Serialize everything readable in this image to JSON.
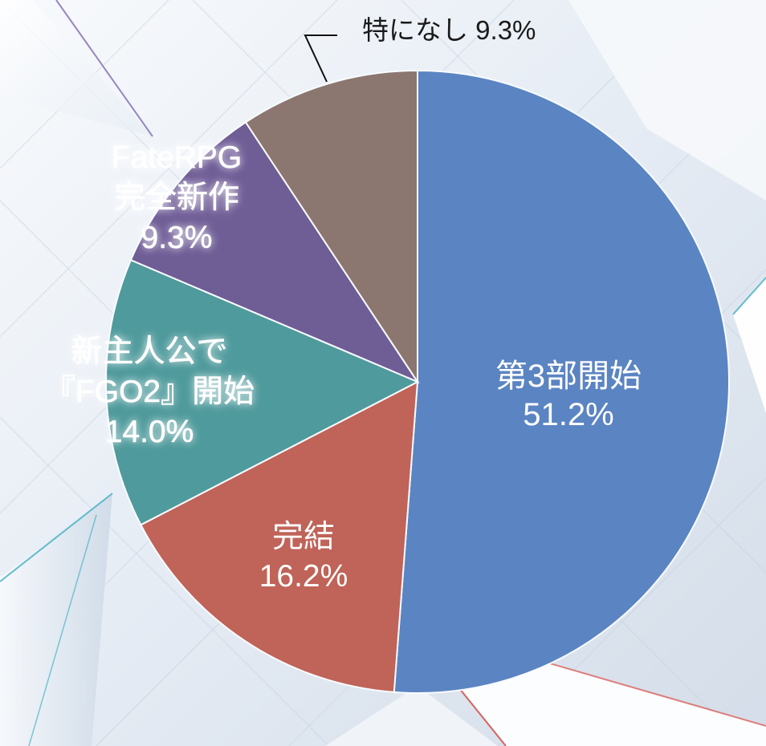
{
  "chart_data": {
    "type": "pie",
    "title": "",
    "slices": [
      {
        "label_lines": [
          "第3部開始"
        ],
        "value": 51.2,
        "value_label": "51.2%",
        "color": "#5b84c2",
        "label_color": "#ffffff"
      },
      {
        "label_lines": [
          "完結"
        ],
        "value": 16.2,
        "value_label": "16.2%",
        "color": "#c06358",
        "label_color": "#ffffff"
      },
      {
        "label_lines": [
          "新主人公で",
          "『FGO2』開始"
        ],
        "value": 14.0,
        "value_label": "14.0%",
        "color": "#4f9a9c",
        "label_color": "#ffffff"
      },
      {
        "label_lines": [
          "FateRPG",
          "完全新作"
        ],
        "value": 9.3,
        "value_label": "9.3%",
        "color": "#6f5d96",
        "label_color": "#ffffff"
      },
      {
        "label_lines": [
          "特になし"
        ],
        "value": 9.3,
        "value_label": "9.3%",
        "color": "#8b7770",
        "label_color": "#1a1a1a"
      }
    ],
    "start": "12 o'clock",
    "direction": "clockwise",
    "legend": "none"
  },
  "colors": {
    "background_light": "#f5f8fb",
    "background_mid": "#dde6f0",
    "background_dark": "#c7d3e1",
    "shard_outline_cyan": "#53b6c8",
    "shard_outline_purple": "#8d7ab8",
    "shard_outline_red": "#d95a56",
    "leader_line": "#111111"
  }
}
